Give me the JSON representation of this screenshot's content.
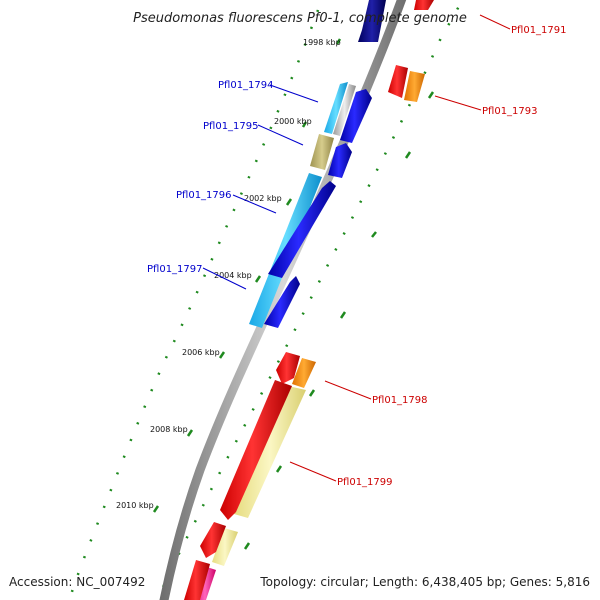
{
  "title": "Pseudomonas fluorescens Pf0-1, complete genome",
  "accession": "Accession: NC_007492",
  "summary": "Topology: circular; Length: 6,438,405 bp; Genes: 5,816",
  "colors": {
    "backbone": "#8a8a8a",
    "tick": "#1f8a1f",
    "label_forward": "#cc0000",
    "label_reverse": "#0000cc",
    "gene_red": "#ff0000",
    "gene_orange": "#ff8800",
    "gene_blue": "#0000ee",
    "gene_navy": "#000088",
    "gene_cyan": "#33ccff",
    "gene_olive": "#b8ad6a",
    "gene_yellow": "#f2ec9a",
    "gene_magenta": "#ff3399",
    "gene_grey": "#c8c8c8"
  },
  "kbp_labels": [
    "1998 kbp",
    "2000 kbp",
    "2002 kbp",
    "2004 kbp",
    "2006 kbp",
    "2008 kbp",
    "2010 kbp"
  ],
  "genes": {
    "pf1791": "Pfl01_1791",
    "pf1793": "Pfl01_1793",
    "pf1794": "Pfl01_1794",
    "pf1795": "Pfl01_1795",
    "pf1796": "Pfl01_1796",
    "pf1797": "Pfl01_1797",
    "pf1798": "Pfl01_1798",
    "pf1799": "Pfl01_1799"
  }
}
